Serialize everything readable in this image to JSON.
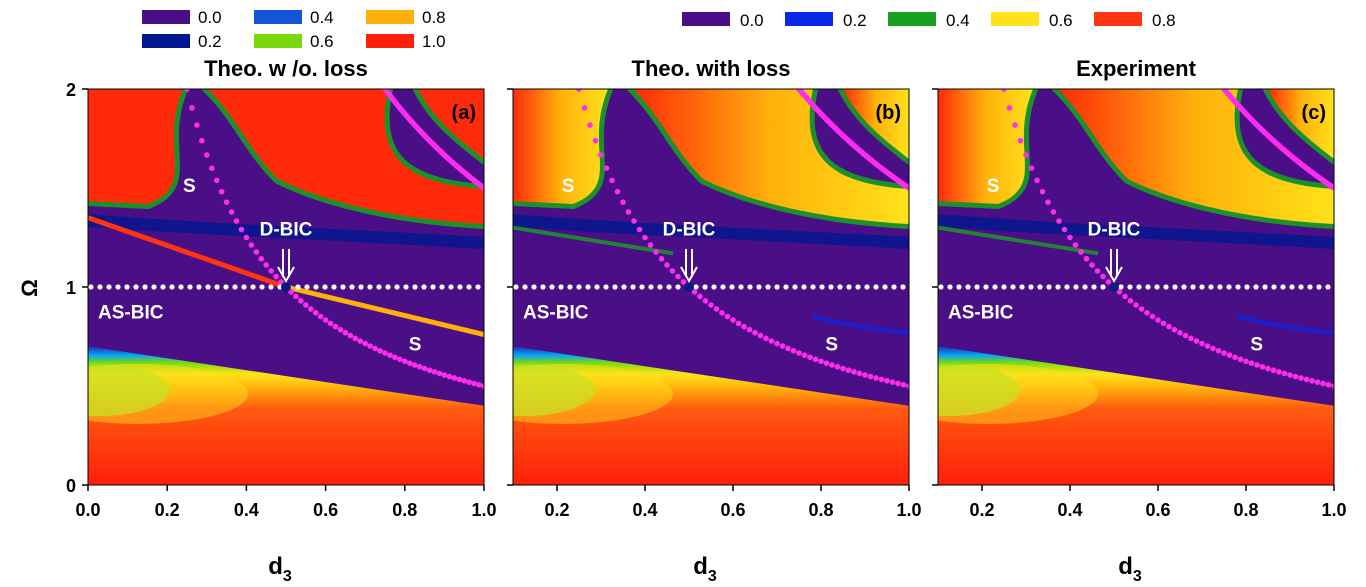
{
  "legend_left": {
    "entries": [
      {
        "label": "0.0",
        "color": "#4a0e86"
      },
      {
        "label": "0.2",
        "color": "#00188f"
      },
      {
        "label": "0.4",
        "color": "#1455d8"
      },
      {
        "label": "0.6",
        "color": "#78d80c"
      },
      {
        "label": "0.8",
        "color": "#ffb10a"
      },
      {
        "label": "1.0",
        "color": "#ff1f0a"
      }
    ]
  },
  "legend_right": {
    "entries": [
      {
        "label": "0.0",
        "color": "#4a0e86"
      },
      {
        "label": "0.2",
        "color": "#0a28e8"
      },
      {
        "label": "0.4",
        "color": "#19a020"
      },
      {
        "label": "0.6",
        "color": "#ffe21a"
      },
      {
        "label": "0.8",
        "color": "#ff3512"
      }
    ]
  },
  "chart_data": [
    {
      "type": "heatmap",
      "panel_label": "(a)",
      "title": "Theo. w /o. loss",
      "xlabel": "d3",
      "ylabel": "Ω",
      "xlim": [
        0.0,
        1.0
      ],
      "ylim": [
        0,
        2
      ],
      "xticks": [
        "0.0",
        "0.2",
        "0.4",
        "0.6",
        "0.8",
        "1.0"
      ],
      "yticks": [
        "0",
        "1",
        "2"
      ],
      "annotations": [
        "S",
        "D-BIC",
        "AS-BIC",
        "S"
      ],
      "bic_points": {
        "as_bic_line_omega": 1.0,
        "d_bic": [
          0.5,
          1.0
        ]
      },
      "s_curves": [
        {
          "x": [
            0.25,
            0.3,
            0.35,
            0.4,
            0.45,
            0.5,
            0.6,
            0.7,
            0.8,
            0.9,
            1.0
          ],
          "y": [
            2.0,
            1.667,
            1.429,
            1.25,
            1.111,
            1.0,
            0.833,
            0.714,
            0.625,
            0.556,
            0.5
          ]
        },
        {
          "x": [
            0.75,
            0.8,
            0.85,
            0.9,
            0.95,
            1.0
          ],
          "y": [
            2.0,
            1.875,
            1.765,
            1.667,
            1.579,
            1.5
          ]
        }
      ]
    },
    {
      "type": "heatmap",
      "panel_label": "(b)",
      "title": "Theo. with loss",
      "xlabel": "d3",
      "ylabel": "",
      "xlim": [
        0.1,
        1.0
      ],
      "ylim": [
        0,
        2
      ],
      "xticks": [
        "0.2",
        "0.4",
        "0.6",
        "0.8",
        "1.0"
      ],
      "annotations": [
        "S",
        "D-BIC",
        "AS-BIC",
        "S"
      ],
      "bic_points": {
        "as_bic_line_omega": 1.0,
        "d_bic": [
          0.5,
          1.0
        ]
      }
    },
    {
      "type": "heatmap",
      "panel_label": "(c)",
      "title": "Experiment",
      "xlabel": "d3",
      "ylabel": "",
      "xlim": [
        0.1,
        1.0
      ],
      "ylim": [
        0,
        2
      ],
      "xticks": [
        "0.2",
        "0.4",
        "0.6",
        "0.8",
        "1.0"
      ],
      "annotations": [
        "S",
        "D-BIC",
        "AS-BIC",
        "S"
      ],
      "bic_points": {
        "as_bic_line_omega": 1.0,
        "d_bic": [
          0.5,
          1.0
        ]
      }
    }
  ]
}
